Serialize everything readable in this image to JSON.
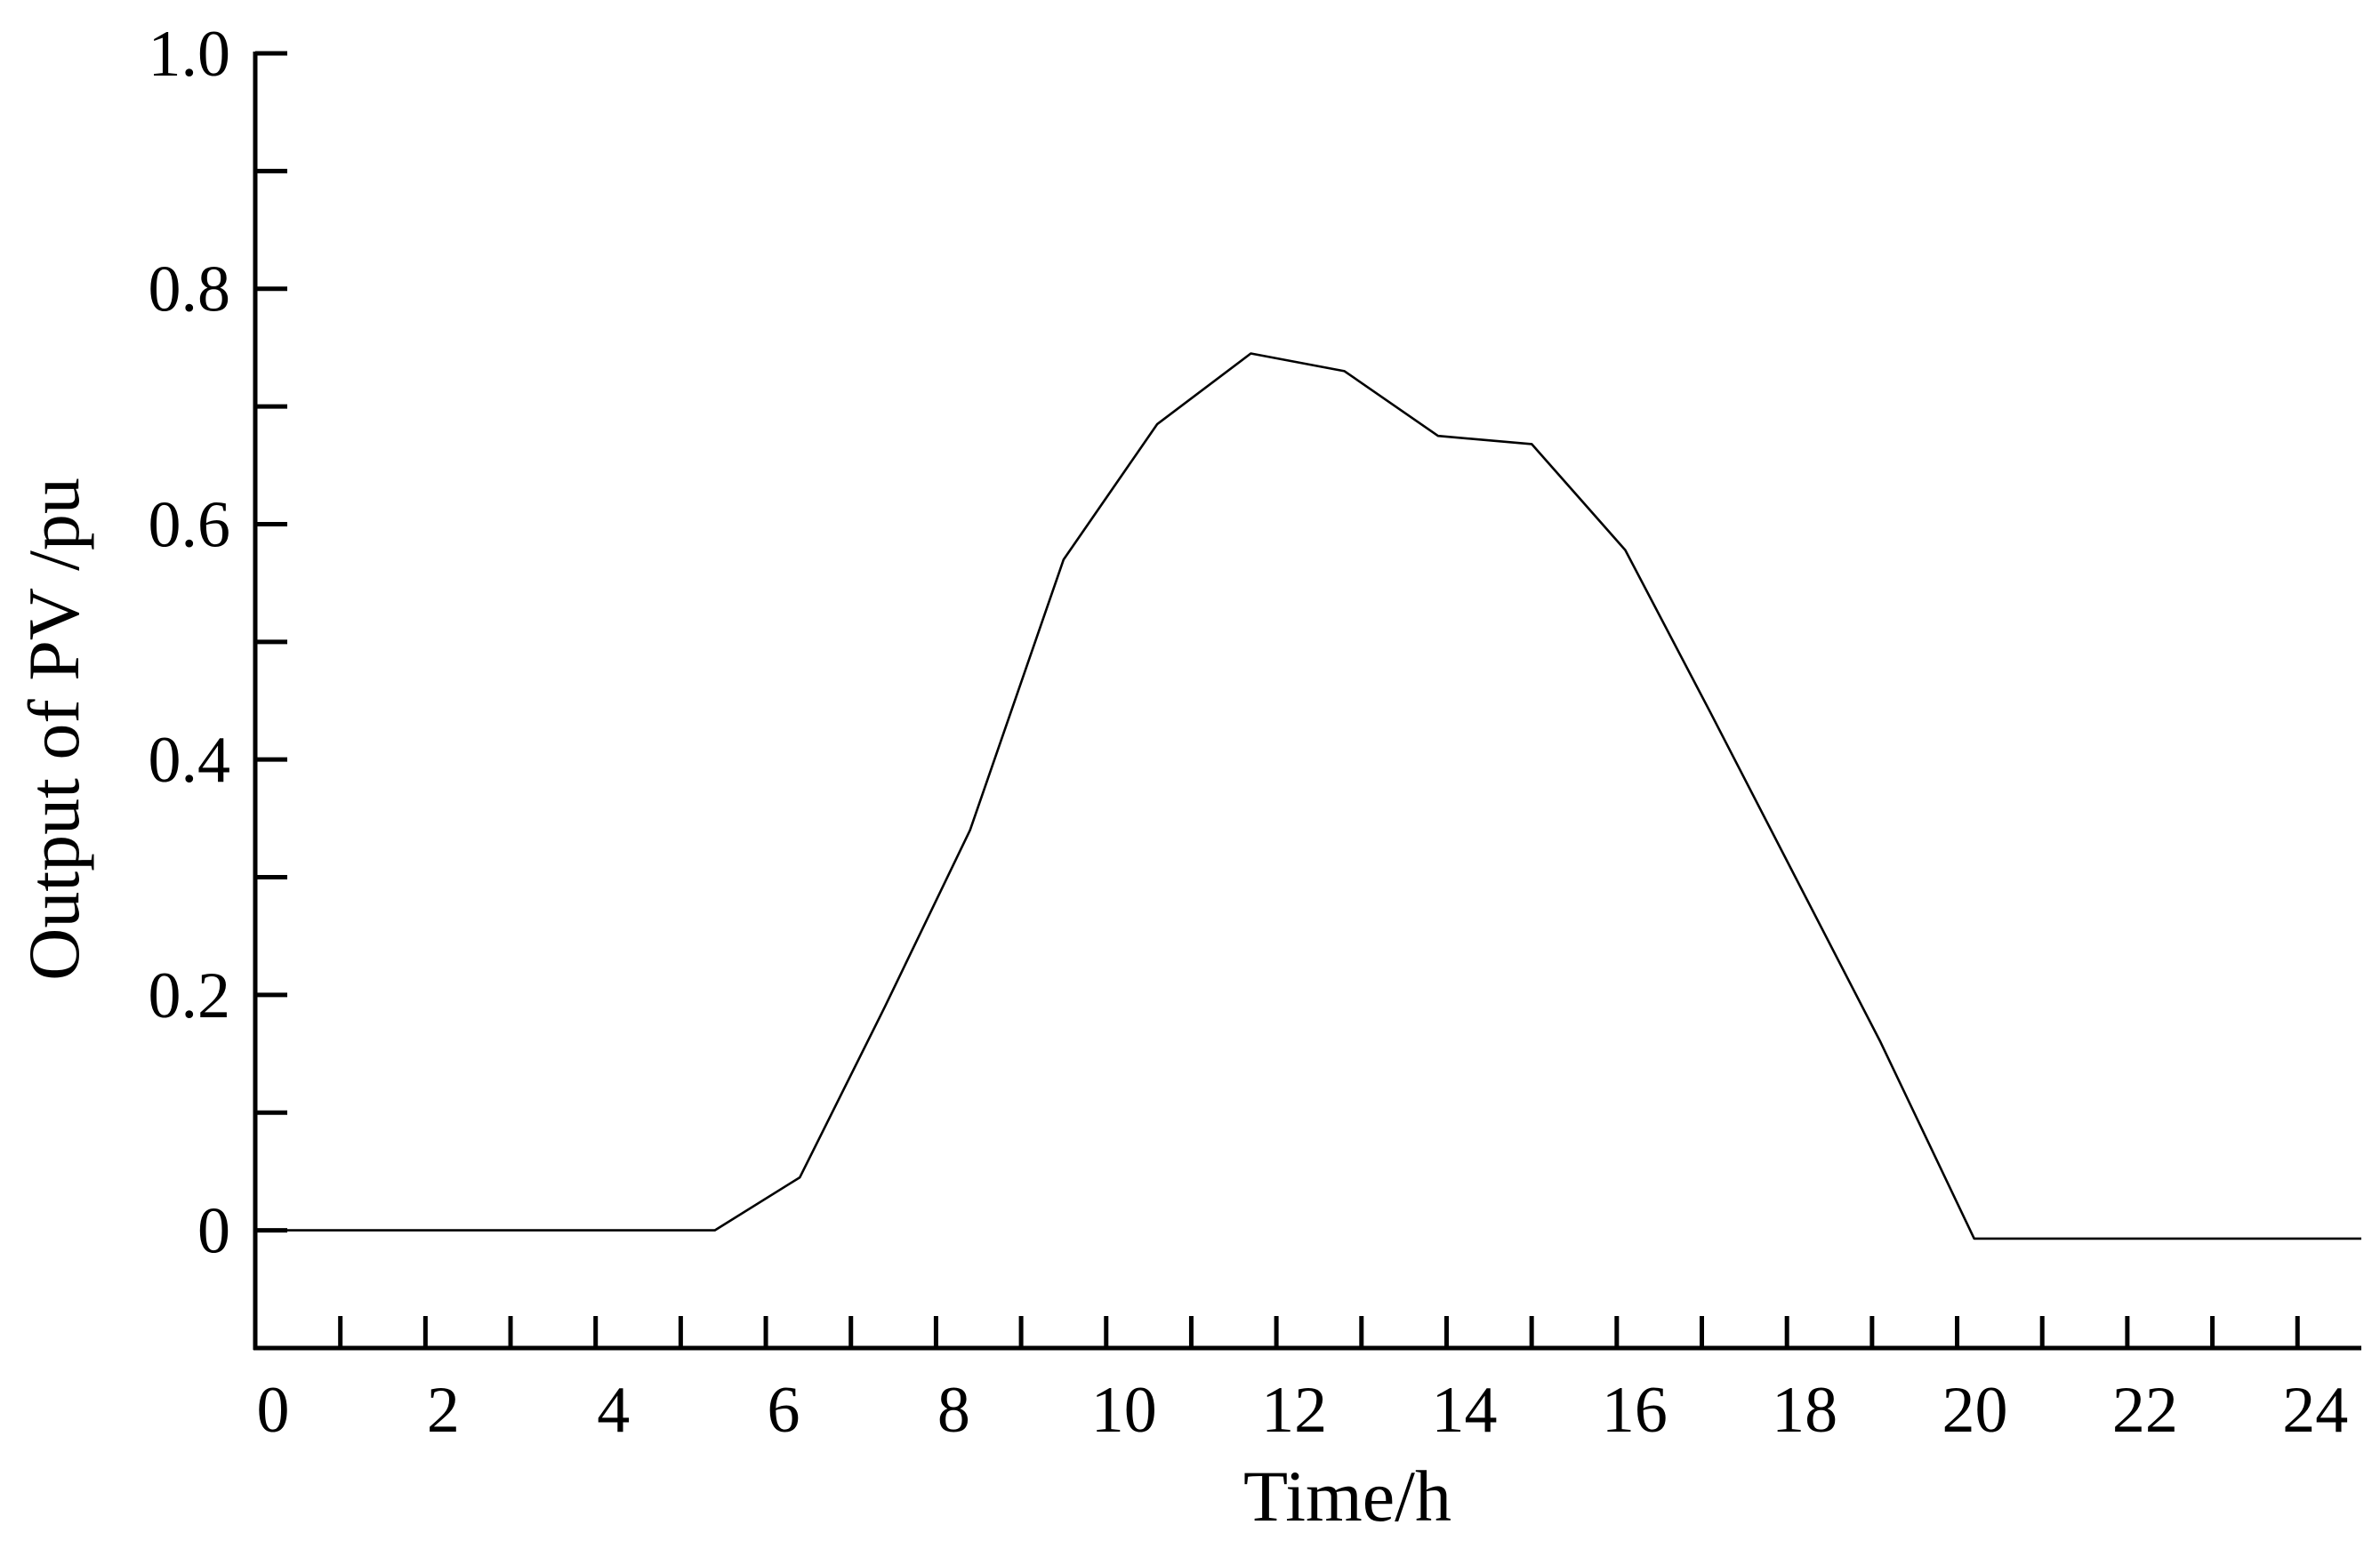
{
  "chart_data": {
    "type": "line",
    "title": "",
    "xlabel": "Time/h",
    "ylabel": "Output of PV /pu",
    "xlim": [
      0,
      24.75
    ],
    "ylim": [
      -0.1,
      1.0
    ],
    "x_ticks": [
      0,
      2,
      4,
      6,
      8,
      10,
      12,
      14,
      16,
      18,
      20,
      22,
      24
    ],
    "x_tick_labels": [
      "0",
      "2",
      "4",
      "6",
      "8",
      "10",
      "12",
      "14",
      "16",
      "18",
      "20",
      "22",
      "24"
    ],
    "x_minor_step": 1,
    "y_ticks": [
      0,
      0.2,
      0.4,
      0.6,
      0.8,
      1.0
    ],
    "y_tick_labels": [
      "0",
      "0.2",
      "0.4",
      "0.6",
      "0.8",
      "1.0"
    ],
    "y_minor_step": 0.1,
    "grid": false,
    "legend": "none",
    "line_color": "#000000",
    "series": [
      {
        "x": [
          0,
          1,
          2,
          3,
          4,
          5,
          5.4,
          6.4,
          7.4,
          8.4,
          9.5,
          10.6,
          11.7,
          12.8,
          13.9,
          15.0,
          16.1,
          17.1,
          18.1,
          19.1,
          20.2,
          21.2,
          22.2,
          23.2,
          24.75
        ],
        "y": [
          0,
          0,
          0,
          0,
          0,
          0,
          0,
          0.045,
          0.19,
          0.34,
          0.57,
          0.685,
          0.745,
          0.73,
          0.675,
          0.668,
          0.578,
          0.44,
          0.3,
          0.16,
          -0.007,
          -0.007,
          -0.007,
          -0.007,
          -0.007
        ]
      }
    ]
  }
}
